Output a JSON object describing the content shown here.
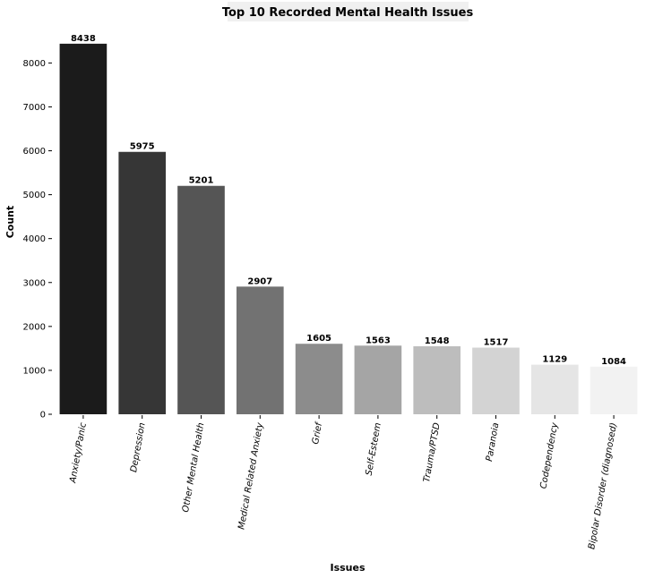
{
  "chart_data": {
    "type": "bar",
    "title": "Top 10 Recorded Mental Health Issues",
    "xlabel": "Issues",
    "ylabel": "Count",
    "ylim": [
      0,
      8700
    ],
    "yticks": [
      0,
      1000,
      2000,
      3000,
      4000,
      5000,
      6000,
      7000,
      8000
    ],
    "grid": false,
    "legend": "none",
    "categories": [
      "Anxiety/Panic",
      "Depression",
      "Other Mental Health",
      "Medical Related Anxiety",
      "Grief",
      "Self-Esteem",
      "Trauma/PTSD",
      "Paranoia",
      "Codependency",
      "Bipolar Disorder (diagnosed)"
    ],
    "values": [
      8438,
      5975,
      5201,
      2907,
      1605,
      1563,
      1548,
      1517,
      1129,
      1084
    ],
    "colors": [
      "#1b1b1b",
      "#363636",
      "#555555",
      "#727272",
      "#8c8c8c",
      "#a5a5a5",
      "#bdbdbd",
      "#d3d3d3",
      "#e5e5e5",
      "#f2f2f2"
    ]
  }
}
